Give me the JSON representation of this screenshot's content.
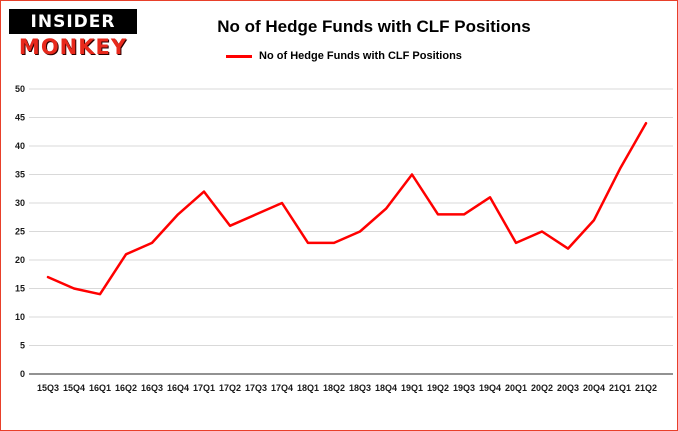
{
  "logo": {
    "top": "INSIDER",
    "bottom": "MONKEY"
  },
  "header": {
    "title": "No of Hedge Funds with CLF Positions"
  },
  "legend": {
    "label": "No of Hedge Funds with CLF Positions"
  },
  "chart_data": {
    "type": "line",
    "title": "No of Hedge Funds with CLF Positions",
    "categories": [
      "15Q3",
      "15Q4",
      "16Q1",
      "16Q2",
      "16Q3",
      "16Q4",
      "17Q1",
      "17Q2",
      "17Q3",
      "17Q4",
      "18Q1",
      "18Q2",
      "18Q3",
      "18Q4",
      "19Q1",
      "19Q2",
      "19Q3",
      "19Q4",
      "20Q1",
      "20Q2",
      "20Q3",
      "20Q4",
      "21Q1",
      "21Q2"
    ],
    "series": [
      {
        "name": "No of Hedge Funds with CLF Positions",
        "color": "#ff0000",
        "values": [
          17,
          15,
          14,
          21,
          23,
          28,
          32,
          26,
          28,
          30,
          23,
          23,
          25,
          29,
          35,
          28,
          28,
          31,
          23,
          25,
          22,
          27,
          36,
          44
        ]
      }
    ],
    "xlabel": "",
    "ylabel": "",
    "ylim": [
      0,
      50
    ],
    "ytick_step": 5,
    "yticks": [
      0,
      5,
      10,
      15,
      20,
      25,
      30,
      35,
      40,
      45,
      50
    ],
    "grid": true,
    "legend_position": "top",
    "colors": {
      "line": "#ff0000",
      "grid": "#d9d9d9",
      "axis": "#262626",
      "tick_text": "#1a1a1a",
      "page_border": "#e8402a",
      "logo_red": "#e8291c"
    }
  }
}
